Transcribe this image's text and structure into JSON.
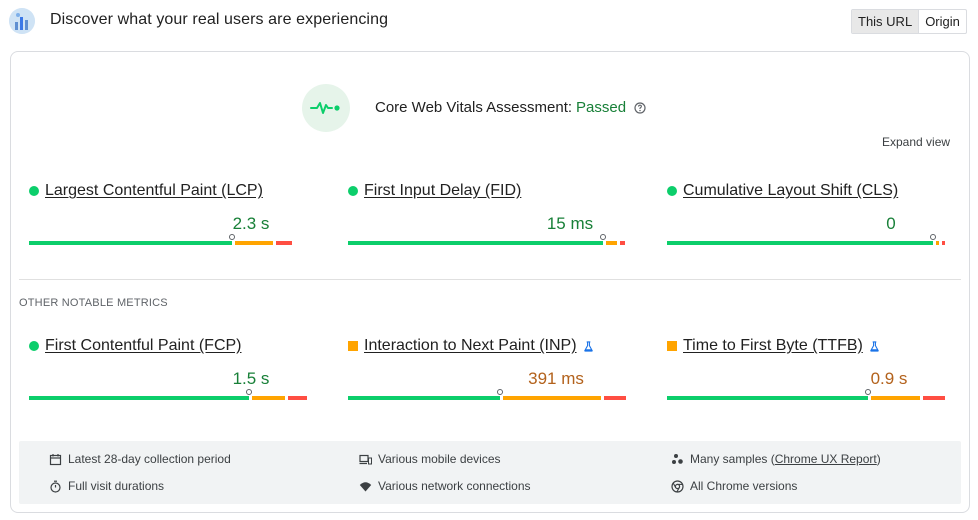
{
  "header": {
    "title": "Discover what your real users are experiencing",
    "toggle": [
      "This URL",
      "Origin"
    ]
  },
  "assessment": {
    "label": "Core Web Vitals Assessment:",
    "status": "Passed",
    "expand_label": "Expand view"
  },
  "core_metrics": [
    {
      "name": "Largest Contentful Paint (LCP)",
      "value": "2.3 s",
      "rating": "good",
      "distribution": {
        "good": 0.75,
        "needs_improvement": 0.14,
        "poor": 0.06
      }
    },
    {
      "name": "First Input Delay (FID)",
      "value": "15 ms",
      "rating": "good",
      "distribution": {
        "good": 0.94,
        "needs_improvement": 0.04,
        "poor": 0.02
      }
    },
    {
      "name": "Cumulative Layout Shift (CLS)",
      "value": "0",
      "rating": "good",
      "distribution": {
        "good": 0.98,
        "needs_improvement": 0.01,
        "poor": 0.01
      }
    }
  ],
  "other_heading": "OTHER NOTABLE METRICS",
  "other_metrics": [
    {
      "name": "First Contentful Paint (FCP)",
      "value": "1.5 s",
      "rating": "good",
      "distribution": {
        "good": 0.81,
        "needs_improvement": 0.12,
        "poor": 0.07
      }
    },
    {
      "name": "Interaction to Next Paint (INP)",
      "value": "391 ms",
      "rating": "needs-improvement",
      "distribution": {
        "good": 0.56,
        "needs_improvement": 0.36,
        "poor": 0.08
      }
    },
    {
      "name": "Time to First Byte (TTFB)",
      "value": "0.9 s",
      "rating": "needs-improvement",
      "distribution": {
        "good": 0.74,
        "needs_improvement": 0.18,
        "poor": 0.08
      }
    }
  ],
  "footer": {
    "collection_period": "Latest 28-day collection period",
    "visit_durations": "Full visit durations",
    "devices": "Various mobile devices",
    "network": "Various network connections",
    "samples_prefix": "Many samples (",
    "samples_link": "Chrome UX Report",
    "samples_suffix": ")",
    "chrome_versions": "All Chrome versions"
  },
  "colors": {
    "good": "#0cce6b",
    "needs_improvement": "#ffa400",
    "poor": "#ff4e42",
    "passed_text": "#188038",
    "ni_text": "#b3621c"
  },
  "icons": [
    "crux-logo-icon",
    "heartbeat-icon",
    "help-icon",
    "lab-flask-icon",
    "calendar-icon",
    "timer-icon",
    "devices-icon",
    "wifi-icon",
    "samples-icon",
    "chrome-icon"
  ]
}
